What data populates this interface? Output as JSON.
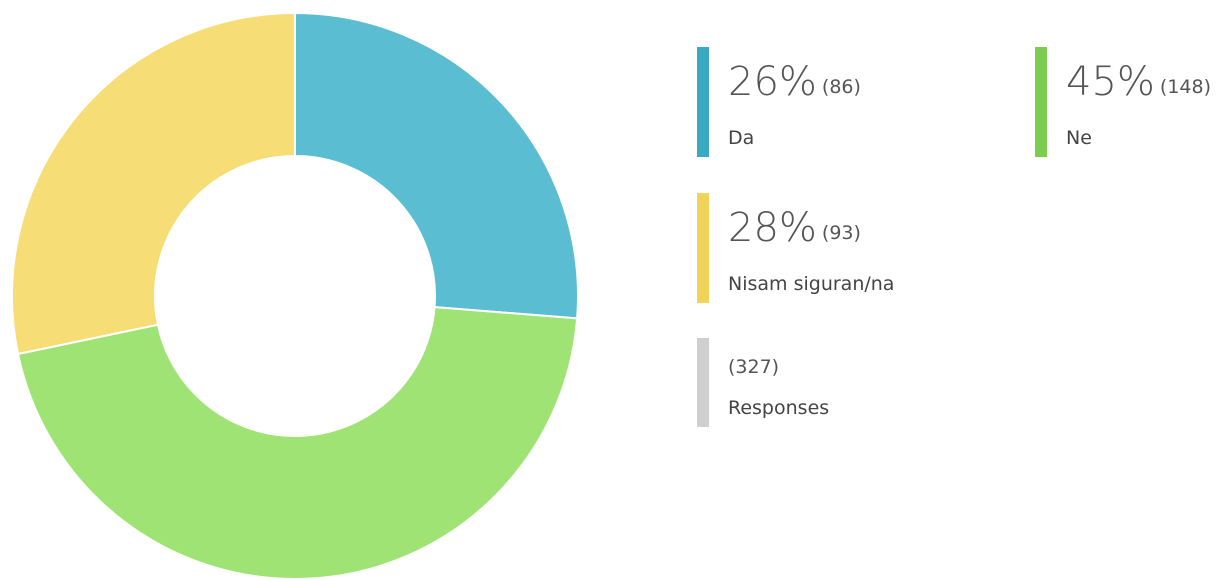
{
  "chart_data": {
    "type": "pie",
    "donut": true,
    "categories": [
      "Da",
      "Ne",
      "Nisam siguran/na"
    ],
    "values": [
      26,
      45,
      28
    ],
    "value_labels": [
      "26%",
      "45%",
      "28%"
    ],
    "count_labels": [
      "(86)",
      "(148)",
      "(93)"
    ],
    "colors": [
      "#5bbdd2",
      "#9ee373",
      "#f6dd75"
    ],
    "legend_colors": [
      "#3aa9c2",
      "#7ccd4f",
      "#f1d35a"
    ],
    "total_label": "(327)",
    "total_text": "Responses",
    "total_color": "#cfcfcf"
  }
}
